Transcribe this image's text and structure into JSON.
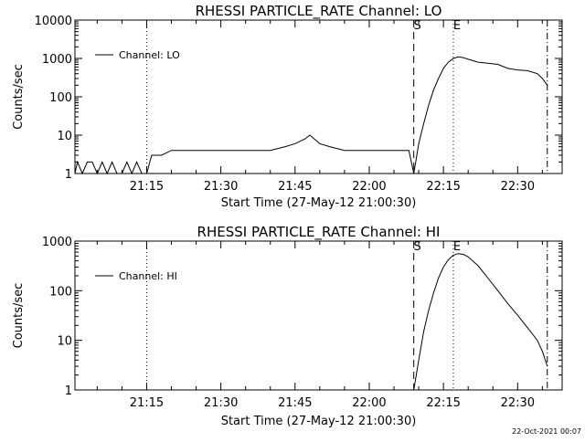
{
  "chart_data": [
    {
      "type": "line",
      "title": "RHESSI PARTICLE_RATE Channel: LO",
      "xlabel": "Start Time (27-May-12 21:00:30)",
      "ylabel": "Counts/sec",
      "y_scale": "log",
      "ylim": [
        1,
        10000
      ],
      "xlim": [
        "21:00:30",
        "22:39:00"
      ],
      "x_ticks": [
        "21:15",
        "21:30",
        "21:45",
        "22:00",
        "22:15",
        "22:30"
      ],
      "y_ticks": [
        "1",
        "10",
        "100",
        "1000",
        "10000"
      ],
      "legend": "top-left",
      "markers": [
        {
          "label": "",
          "x": "21:15",
          "style": "dotted"
        },
        {
          "label": "S",
          "x": "22:09",
          "style": "dashed"
        },
        {
          "label": "E",
          "x": "22:17",
          "style": "dotted"
        },
        {
          "label": "",
          "x": "22:36",
          "style": "dashdot"
        }
      ],
      "series": [
        {
          "name": "Channel: LO",
          "x": [
            "21:00:30",
            "21:01",
            "21:02",
            "21:03",
            "21:04",
            "21:05",
            "21:06",
            "21:07",
            "21:08",
            "21:09",
            "21:10",
            "21:11",
            "21:12",
            "21:13",
            "21:14",
            "21:15",
            "21:16",
            "21:18",
            "21:20",
            "21:25",
            "21:30",
            "21:35",
            "21:40",
            "21:43",
            "21:45",
            "21:47",
            "21:48",
            "21:50",
            "21:52",
            "21:55",
            "22:00",
            "22:05",
            "22:08",
            "22:09",
            "22:10",
            "22:11",
            "22:12",
            "22:13",
            "22:14",
            "22:15",
            "22:16",
            "22:17",
            "22:18",
            "22:19",
            "22:20",
            "22:22",
            "22:24",
            "22:26",
            "22:28",
            "22:30",
            "22:32",
            "22:34",
            "22:35",
            "22:36"
          ],
          "y": [
            1,
            2,
            1,
            2,
            2,
            1,
            2,
            1,
            2,
            1,
            1,
            2,
            1,
            2,
            1,
            1,
            3,
            3,
            4,
            4,
            4,
            4,
            4,
            5,
            6,
            8,
            10,
            6,
            5,
            4,
            4,
            4,
            4,
            1,
            6,
            20,
            60,
            150,
            300,
            550,
            800,
            1000,
            1100,
            1050,
            950,
            800,
            750,
            700,
            550,
            500,
            480,
            400,
            300,
            200
          ]
        }
      ]
    },
    {
      "type": "line",
      "title": "RHESSI PARTICLE_RATE Channel: HI",
      "xlabel": "Start Time (27-May-12 21:00:30)",
      "ylabel": "Counts/sec",
      "y_scale": "log",
      "ylim": [
        1,
        1000
      ],
      "xlim": [
        "21:00:30",
        "22:39:00"
      ],
      "x_ticks": [
        "21:15",
        "21:30",
        "21:45",
        "22:00",
        "22:15",
        "22:30"
      ],
      "y_ticks": [
        "1",
        "10",
        "100",
        "1000"
      ],
      "legend": "top-left",
      "markers": [
        {
          "label": "",
          "x": "21:15",
          "style": "dotted"
        },
        {
          "label": "S",
          "x": "22:09",
          "style": "dashed"
        },
        {
          "label": "E",
          "x": "22:17",
          "style": "dotted"
        },
        {
          "label": "",
          "x": "22:36",
          "style": "dashdot"
        }
      ],
      "series": [
        {
          "name": "Channel: HI",
          "x": [
            "22:09",
            "22:10",
            "22:11",
            "22:12",
            "22:13",
            "22:14",
            "22:15",
            "22:16",
            "22:17",
            "22:18",
            "22:19",
            "22:20",
            "22:22",
            "22:24",
            "22:26",
            "22:28",
            "22:30",
            "22:32",
            "22:34",
            "22:35",
            "22:36"
          ],
          "y": [
            1,
            4,
            15,
            40,
            90,
            180,
            300,
            420,
            520,
            560,
            540,
            480,
            320,
            180,
            100,
            55,
            32,
            18,
            10,
            6,
            3
          ]
        }
      ]
    }
  ],
  "footer": {
    "timestamp": "22-Oct-2021 00:07"
  }
}
